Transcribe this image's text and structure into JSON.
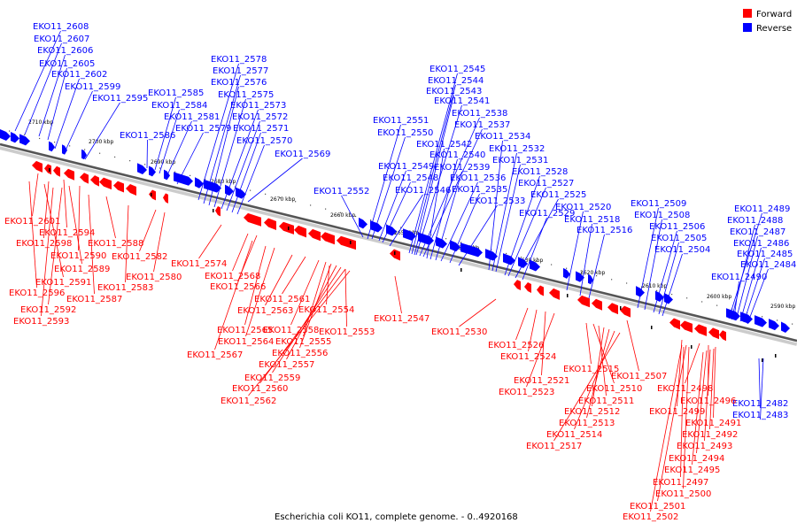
{
  "legend": {
    "forward": {
      "label": "Forward",
      "color": "#ff0000"
    },
    "reverse": {
      "label": "Reverse",
      "color": "#0000ff"
    }
  },
  "caption": "Escherichia coli KO11, complete genome. - 0..4920168",
  "ticks": [
    "2710 kbp",
    "2700 kbp",
    "2690 kbp",
    "2680 kbp",
    "2670 kbp",
    "2660 kbp",
    "2650 kbp",
    "2640 kbp",
    "2630 kbp",
    "2620 kbp",
    "2610 kbp",
    "2600 kbp",
    "2590 kbp"
  ],
  "reverse_labels": [
    "EKO11_2608",
    "EKO11_2607",
    "EKO11_2606",
    "EKO11_2605",
    "EKO11_2602",
    "EKO11_2599",
    "EKO11_2595",
    "EKO11_2586",
    "EKO11_2585",
    "EKO11_2584",
    "EKO11_2581",
    "EKO11_2579",
    "EKO11_2578",
    "EKO11_2577",
    "EKO11_2576",
    "EKO11_2575",
    "EKO11_2573",
    "EKO11_2572",
    "EKO11_2571",
    "EKO11_2570",
    "EKO11_2569",
    "EKO11_2552",
    "EKO11_2551",
    "EKO11_2550",
    "EKO11_2549",
    "EKO11_2548",
    "EKO11_2546",
    "EKO11_2545",
    "EKO11_2544",
    "EKO11_2543",
    "EKO11_2541",
    "EKO11_2538",
    "EKO11_2537",
    "EKO11_2542",
    "EKO11_2540",
    "EKO11_2539",
    "EKO11_2536",
    "EKO11_2535",
    "EKO11_2533",
    "EKO11_2534",
    "EKO11_2532",
    "EKO11_2531",
    "EKO11_2528",
    "EKO11_2527",
    "EKO11_2525",
    "EKO11_2529",
    "EKO11_2520",
    "EKO11_2518",
    "EKO11_2516",
    "EKO11_2509",
    "EKO11_2508",
    "EKO11_2506",
    "EKO11_2505",
    "EKO11_2504",
    "EKO11_2489",
    "EKO11_2488",
    "EKO11_2487",
    "EKO11_2486",
    "EKO11_2485",
    "EKO11_2484",
    "EKO11_2490",
    "EKO11_2482",
    "EKO11_2483"
  ],
  "forward_labels": [
    "EKO11_2601",
    "EKO11_2594",
    "EKO11_2598",
    "EKO11_2590",
    "EKO11_2589",
    "EKO11_2591",
    "EKO11_2596",
    "EKO11_2592",
    "EKO11_2593",
    "EKO11_2588",
    "EKO11_2582",
    "EKO11_2580",
    "EKO11_2583",
    "EKO11_2587",
    "EKO11_2574",
    "EKO11_2568",
    "EKO11_2566",
    "EKO11_2561",
    "EKO11_2563",
    "EKO11_2565",
    "EKO11_2564",
    "EKO11_2567",
    "EKO11_2558",
    "EKO11_2555",
    "EKO11_2556",
    "EKO11_2557",
    "EKO11_2559",
    "EKO11_2560",
    "EKO11_2562",
    "EKO11_2554",
    "EKO11_2553",
    "EKO11_2547",
    "EKO11_2530",
    "EKO11_2526",
    "EKO11_2524",
    "EKO11_2521",
    "EKO11_2523",
    "EKO11_2515",
    "EKO11_2510",
    "EKO11_2511",
    "EKO11_2512",
    "EKO11_2513",
    "EKO11_2514",
    "EKO11_2517",
    "EKO11_2507",
    "EKO11_2498",
    "EKO11_2496",
    "EKO11_2499",
    "EKO11_2491",
    "EKO11_2492",
    "EKO11_2493",
    "EKO11_2494",
    "EKO11_2495",
    "EKO11_2497",
    "EKO11_2500",
    "EKO11_2501",
    "EKO11_2502"
  ]
}
